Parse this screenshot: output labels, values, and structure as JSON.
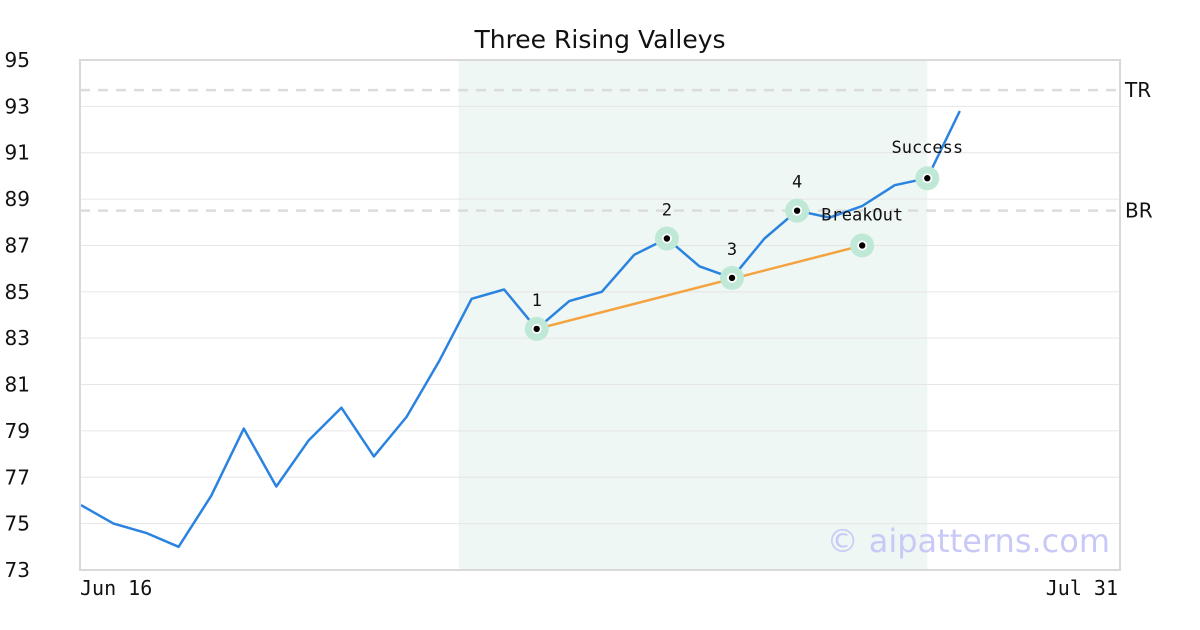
{
  "chart_data": {
    "type": "line",
    "title": "Three Rising Valleys",
    "xlabel": "",
    "ylabel": "",
    "x_tick_labels": [
      "Jun 16",
      "Jul 31"
    ],
    "y_ticks": [
      73,
      75,
      77,
      79,
      81,
      83,
      85,
      87,
      89,
      91,
      93,
      95
    ],
    "ylim": [
      73,
      95
    ],
    "grid": "horizontal",
    "series": [
      {
        "color": "#2b83e0",
        "values": [
          75.8,
          75.0,
          74.6,
          74.0,
          76.2,
          79.1,
          76.6,
          78.6,
          80.0,
          77.9,
          79.6,
          82.0,
          84.7,
          85.1,
          83.4,
          84.6,
          85.0,
          86.6,
          87.3,
          86.1,
          85.6,
          87.3,
          88.5,
          88.2,
          88.7,
          89.6,
          89.9,
          92.8
        ]
      }
    ],
    "highlight_region": {
      "from_index": 12,
      "to_index": 26,
      "color": "#eef7f3"
    },
    "support_line": {
      "from_index": 14,
      "to_index": 24,
      "from_value": 83.4,
      "to_value": 87.0,
      "color": "#f4a340"
    },
    "reference_lines": [
      {
        "label": "TR",
        "value": 93.7
      },
      {
        "label": "BR",
        "value": 88.5
      }
    ],
    "points": [
      {
        "label": "1",
        "index": 14,
        "value": 83.4
      },
      {
        "label": "2",
        "index": 18,
        "value": 87.3
      },
      {
        "label": "3",
        "index": 20,
        "value": 85.6
      },
      {
        "label": "4",
        "index": 22,
        "value": 88.5
      },
      {
        "label": "BreakOut",
        "index": 24,
        "value": 87.0
      },
      {
        "label": "Success",
        "index": 26,
        "value": 89.9
      }
    ]
  },
  "watermark": "© aipatterns.com"
}
